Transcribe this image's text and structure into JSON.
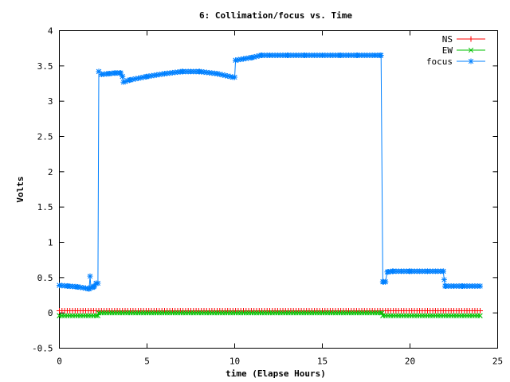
{
  "chart_data": {
    "type": "line",
    "title": "6: Collimation/focus vs. Time",
    "xlabel": "time (Elapse Hours)",
    "ylabel": "Volts",
    "xlim": [
      0,
      25
    ],
    "ylim": [
      -0.5,
      4
    ],
    "xticks": [
      0,
      5,
      10,
      15,
      20,
      25
    ],
    "xtick_labels": [
      "0",
      "5",
      "10",
      "15",
      "20",
      "25"
    ],
    "yticks": [
      -0.5,
      0,
      0.5,
      1,
      1.5,
      2,
      2.5,
      3,
      3.5,
      4
    ],
    "ytick_labels": [
      "-0.5",
      "0",
      "0.5",
      "1",
      "1.5",
      "2",
      "2.5",
      "3",
      "3.5",
      "4"
    ],
    "grid": false,
    "legend_position": "top-right",
    "series": [
      {
        "name": "NS",
        "color": "#ff0000",
        "marker": "plus",
        "x": [
          0,
          24
        ],
        "y": [
          0.03,
          0.03
        ]
      },
      {
        "name": "EW",
        "color": "#00c000",
        "marker": "cross",
        "x": [
          0,
          2.2,
          2.25,
          18.4,
          18.45,
          24
        ],
        "y": [
          -0.04,
          -0.04,
          0.0,
          0.0,
          -0.04,
          -0.04
        ]
      },
      {
        "name": "focus",
        "color": "#0080ff",
        "marker": "star",
        "x": [
          0,
          0.5,
          1.0,
          1.5,
          1.7,
          1.75,
          1.8,
          1.9,
          2.0,
          2.1,
          2.2,
          2.25,
          2.4,
          2.8,
          3.2,
          3.5,
          3.6,
          3.65,
          4.0,
          5.0,
          6.0,
          7.0,
          8.0,
          9.0,
          9.9,
          10.0,
          10.05,
          10.5,
          11.0,
          11.5,
          12.0,
          13.0,
          14.0,
          15.0,
          16.0,
          17.0,
          18.0,
          18.3,
          18.35,
          18.45,
          18.5,
          18.6,
          18.7,
          19.0,
          20.0,
          21.0,
          21.9,
          21.95,
          22.0,
          23.0,
          24.0
        ],
        "y": [
          0.39,
          0.38,
          0.37,
          0.35,
          0.34,
          0.52,
          0.36,
          0.36,
          0.38,
          0.42,
          0.42,
          3.42,
          3.38,
          3.39,
          3.4,
          3.4,
          3.35,
          3.27,
          3.3,
          3.35,
          3.39,
          3.42,
          3.42,
          3.39,
          3.34,
          3.34,
          3.58,
          3.6,
          3.62,
          3.65,
          3.65,
          3.65,
          3.65,
          3.65,
          3.65,
          3.65,
          3.65,
          3.65,
          3.65,
          0.44,
          0.44,
          0.44,
          0.58,
          0.59,
          0.59,
          0.59,
          0.59,
          0.47,
          0.38,
          0.38,
          0.38
        ]
      }
    ]
  }
}
